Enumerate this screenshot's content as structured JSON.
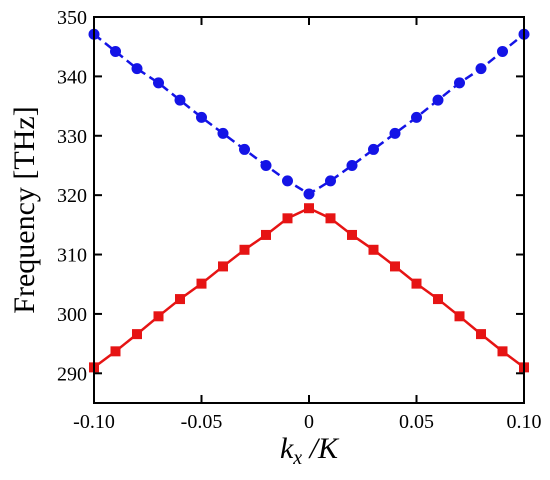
{
  "chart_data": {
    "type": "line",
    "xlabel_main": "k",
    "xlabel_sub": "x",
    "xlabel_rest": " /K",
    "ylabel": "Frequency [THz]",
    "xlim": [
      -0.1,
      0.1
    ],
    "ylim": [
      285,
      350
    ],
    "grid": false,
    "x_ticks": [
      -0.1,
      -0.05,
      0,
      0.05,
      0.1
    ],
    "x_tick_labels": [
      "-0.10",
      "-0.05",
      "0",
      "0.05",
      "0.10"
    ],
    "y_ticks": [
      290,
      300,
      310,
      320,
      330,
      340,
      350
    ],
    "y_tick_labels": [
      "290",
      "300",
      "310",
      "320",
      "330",
      "340",
      "350"
    ],
    "x": [
      -0.1,
      -0.09,
      -0.08,
      -0.07,
      -0.06,
      -0.05,
      -0.04,
      -0.03,
      -0.02,
      -0.01,
      0.0,
      0.01,
      0.02,
      0.03,
      0.04,
      0.05,
      0.06,
      0.07,
      0.08,
      0.09,
      0.1
    ],
    "series": [
      {
        "color": "#1414e6",
        "marker": "circle",
        "line_style": "dashed",
        "values": [
          347.1,
          344.2,
          341.3,
          338.9,
          336.0,
          333.1,
          330.4,
          327.7,
          325.0,
          322.4,
          320.2,
          322.4,
          325.0,
          327.7,
          330.4,
          333.1,
          336.0,
          338.9,
          341.3,
          344.2,
          347.1
        ]
      },
      {
        "color": "#e61414",
        "marker": "square",
        "line_style": "solid",
        "values": [
          291.0,
          293.7,
          296.6,
          299.6,
          302.5,
          305.1,
          308.0,
          310.8,
          313.3,
          316.1,
          317.8,
          316.1,
          313.3,
          310.8,
          308.0,
          305.1,
          302.5,
          299.6,
          296.6,
          293.7,
          291.0
        ]
      }
    ]
  }
}
